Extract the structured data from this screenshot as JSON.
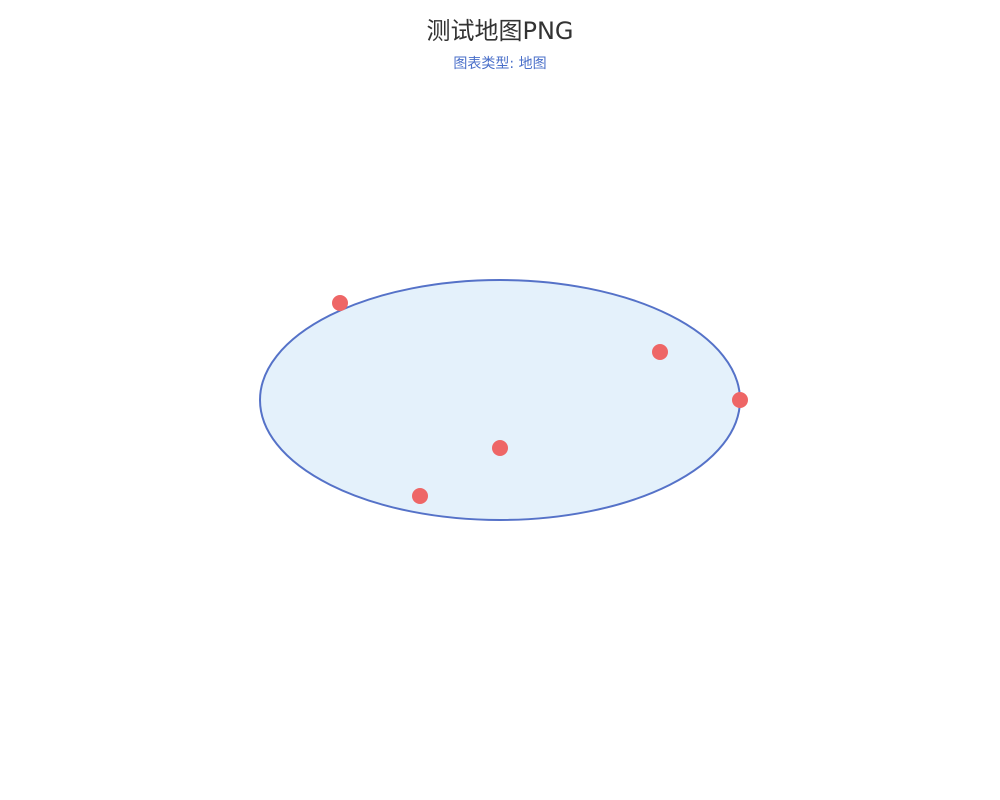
{
  "header": {
    "title": "测试地图PNG",
    "subtitle": "图表类型: 地图"
  },
  "colors": {
    "title": "#333333",
    "subtitle": "#4a6fc9",
    "region_fill": "#e4f1fb",
    "region_stroke": "#5572c8",
    "point": "#ee6666"
  },
  "map": {
    "region": "ellipse",
    "markers": [
      "marker-1",
      "marker-2",
      "marker-3",
      "marker-4",
      "marker-5"
    ]
  }
}
